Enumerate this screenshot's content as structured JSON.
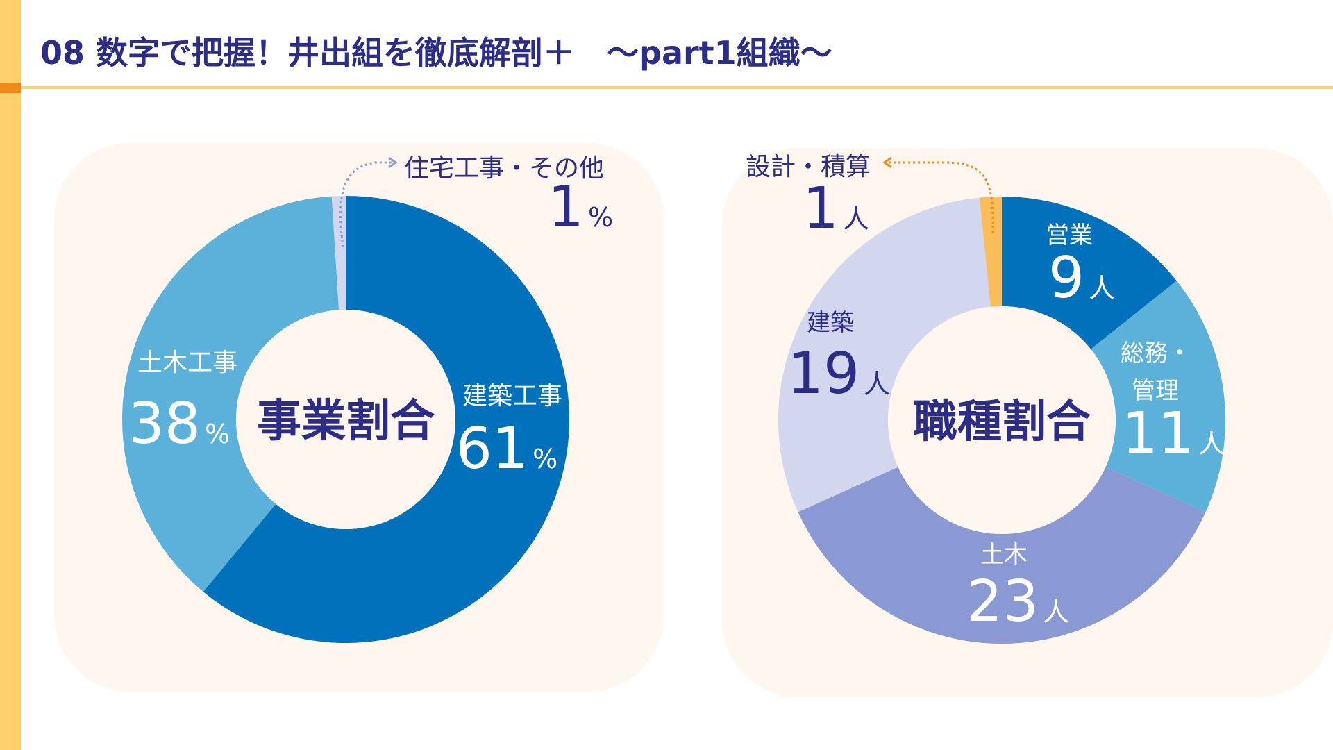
{
  "title": "08 数字で把握！井出組を徹底解剖＋　～part1組織～",
  "colors": {
    "title": "#2b2d86",
    "navy": "#2b2d86",
    "dark_blue": "#0171bb",
    "sky_blue": "#5bb1d9",
    "lavender": "#d3d6ef",
    "periwinkle": "#8a98d3",
    "orange": "#fbbc5a",
    "orange_arrow": "#ef8a1a",
    "panel_bg": "#fef6ef",
    "accent_bar": "#fdd06c"
  },
  "chart_data": [
    {
      "type": "pie",
      "title": "事業割合",
      "unit": "%",
      "slices": [
        {
          "label": "建築工事",
          "value": 61,
          "color": "#0171bb"
        },
        {
          "label": "土木工事",
          "value": 38,
          "color": "#5bb1d9"
        },
        {
          "label": "住宅工事・その他",
          "value": 1,
          "color": "#d3d6ef"
        }
      ]
    },
    {
      "type": "pie",
      "title": "職種割合",
      "unit": "人",
      "slices": [
        {
          "label": "営業",
          "value": 9,
          "color": "#0171bb"
        },
        {
          "label": "総務・管理",
          "value": 11,
          "color": "#5bb1d9"
        },
        {
          "label": "土木",
          "value": 23,
          "color": "#8a98d3"
        },
        {
          "label": "建築",
          "value": 19,
          "color": "#d3d6ef"
        },
        {
          "label": "設計・積算",
          "value": 1,
          "color": "#fbbc5a"
        }
      ]
    }
  ]
}
